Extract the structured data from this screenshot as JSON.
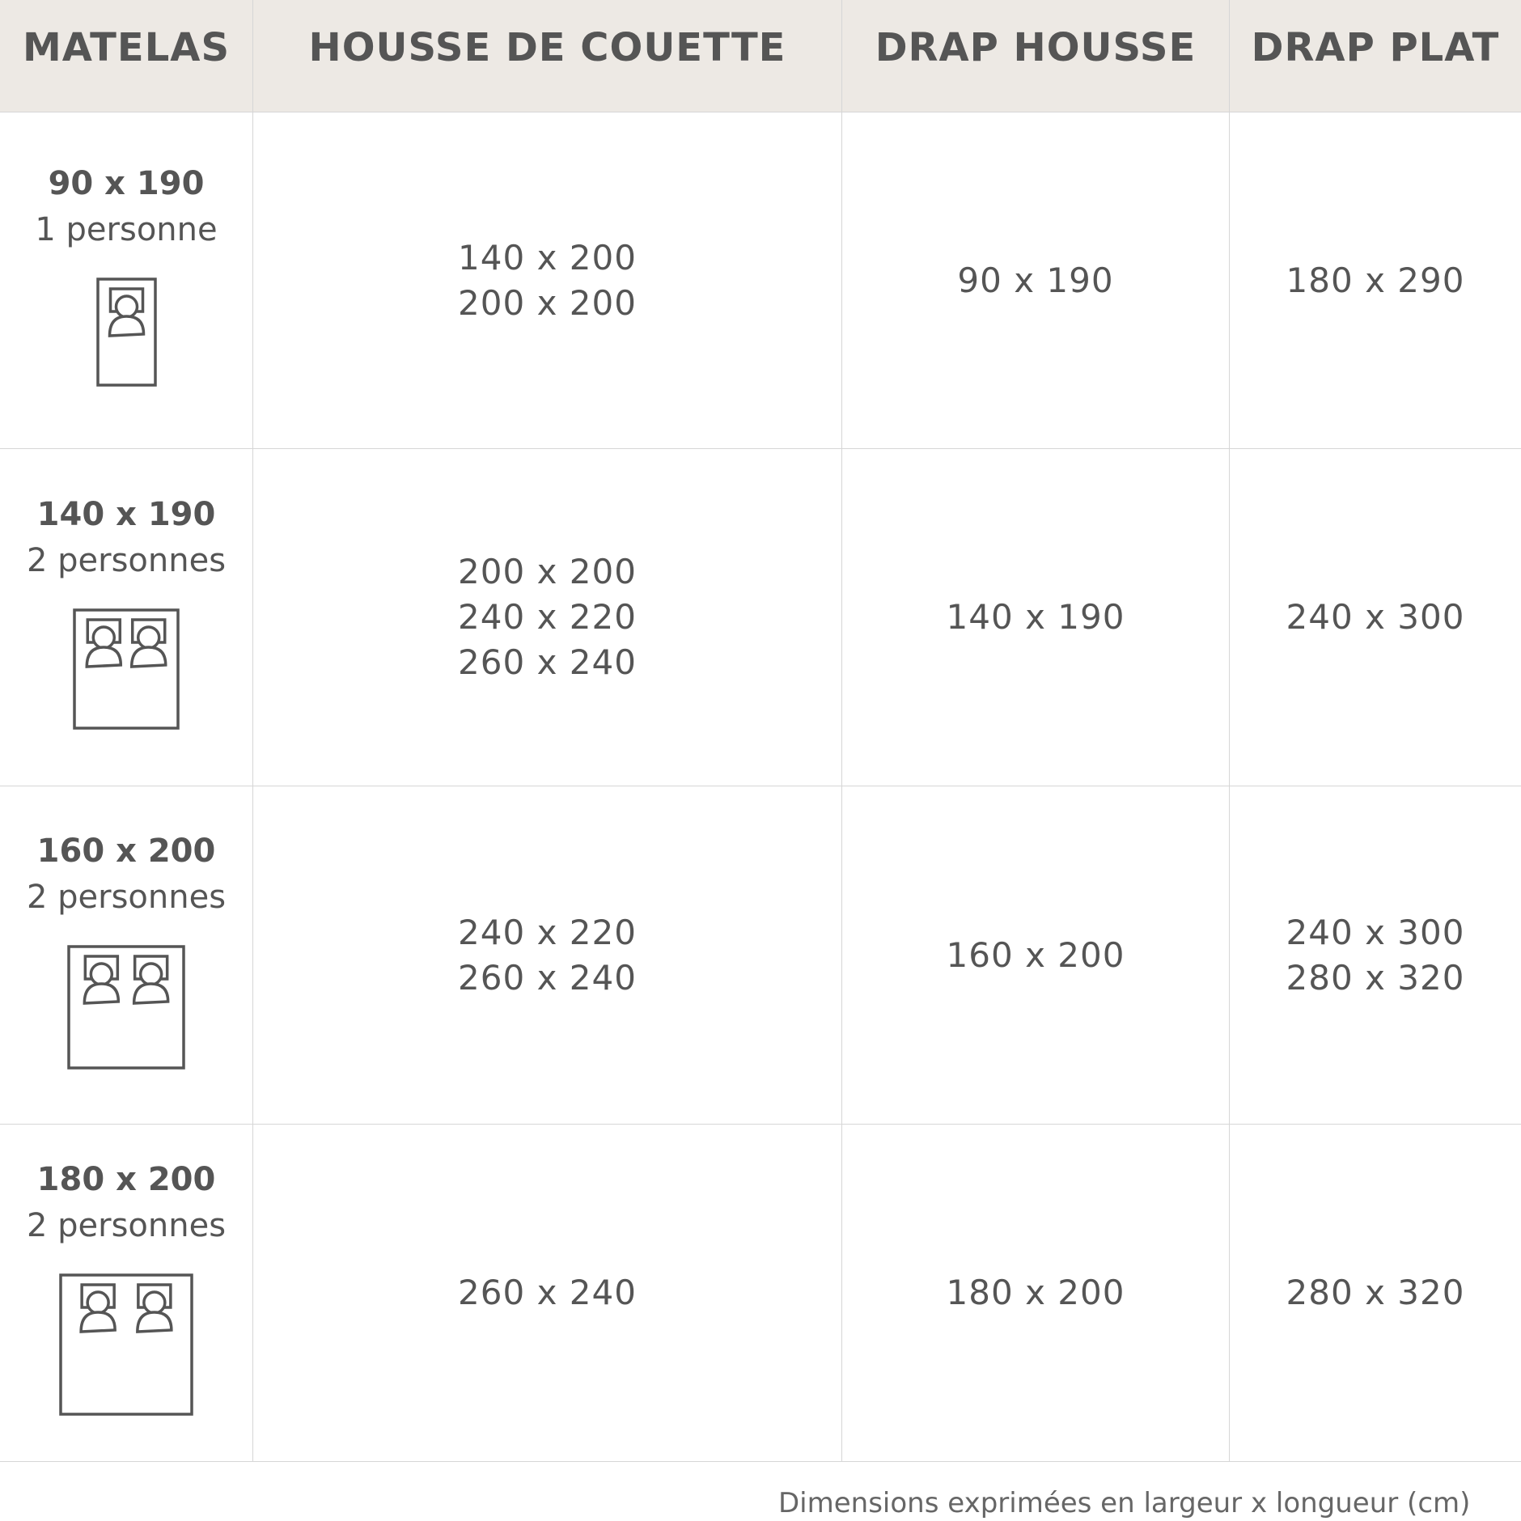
{
  "headers": [
    "MATELAS",
    "HOUSSE DE COUETTE",
    "DRAP HOUSSE",
    "DRAP PLAT"
  ],
  "rows": [
    {
      "size": "90 x 190",
      "persons": "1 personne",
      "bed_icon": "single-bed-icon",
      "people": 1,
      "housse": [
        "140 x 200",
        "200 x 200"
      ],
      "drap_housse": [
        "90 x 190"
      ],
      "drap_plat": [
        "180 x 290"
      ]
    },
    {
      "size": "140 x 190",
      "persons": "2 personnes",
      "bed_icon": "double-bed-icon",
      "people": 2,
      "housse": [
        "200 x 200",
        "240 x 220",
        "260 x 240"
      ],
      "drap_housse": [
        "140 x 190"
      ],
      "drap_plat": [
        "240 x 300"
      ]
    },
    {
      "size": "160 x 200",
      "persons": "2 personnes",
      "bed_icon": "queen-bed-icon",
      "people": 2,
      "housse": [
        "240 x 220",
        "260 x 240"
      ],
      "drap_housse": [
        "160 x 200"
      ],
      "drap_plat": [
        "240 x 300",
        "280 x 320"
      ]
    },
    {
      "size": "180 x 200",
      "persons": "2 personnes",
      "bed_icon": "king-bed-icon",
      "people": 2,
      "housse": [
        "260 x 240"
      ],
      "drap_housse": [
        "180 x 200"
      ],
      "drap_plat": [
        "280 x 320"
      ]
    }
  ],
  "footer": "Dimensions exprimées en largeur x longueur (cm)",
  "colors": {
    "header_bg": "#ede9e4",
    "text": "#555555",
    "border": "#d6d6d6"
  }
}
